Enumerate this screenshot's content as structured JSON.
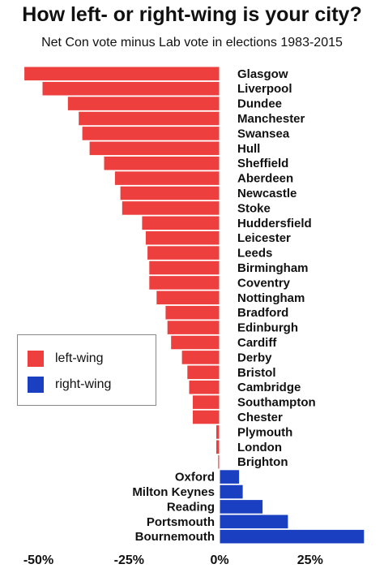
{
  "chart_data": {
    "type": "bar",
    "orientation": "horizontal",
    "title": "How left- or right-wing is your city?",
    "subtitle": "Net Con vote minus Lab vote in elections 1983-2015",
    "xlabel": "",
    "ylabel": "",
    "xlim": [
      -55,
      55
    ],
    "xticks": [
      -50,
      -25,
      0,
      25,
      50
    ],
    "xtick_labels": [
      "-50%",
      "-25%",
      "0%",
      "25%",
      "50%"
    ],
    "grid": false,
    "legend_position": "left-middle",
    "legend": [
      {
        "label": "left-wing",
        "color": "#ee3f3f"
      },
      {
        "label": "right-wing",
        "color": "#1a3fc0"
      }
    ],
    "colors": {
      "left": "#ee3f3f",
      "right": "#1a3fc0",
      "bar_border": "#ffffff"
    },
    "categories": [
      "Glasgow",
      "Liverpool",
      "Dundee",
      "Manchester",
      "Swansea",
      "Hull",
      "Sheffield",
      "Aberdeen",
      "Newcastle",
      "Stoke",
      "Huddersfield",
      "Leicester",
      "Leeds",
      "Birmingham",
      "Coventry",
      "Nottingham",
      "Bradford",
      "Edinburgh",
      "Cardiff",
      "Derby",
      "Bristol",
      "Cambridge",
      "Southampton",
      "Chester",
      "Plymouth",
      "London",
      "Brighton",
      "Oxford",
      "Milton Keynes",
      "Reading",
      "Portsmouth",
      "Bournemouth"
    ],
    "values": [
      -54,
      -49,
      -42,
      -39,
      -38,
      -36,
      -32,
      -29,
      -27.5,
      -27,
      -21.5,
      -20.5,
      -20,
      -19.5,
      -19.5,
      -17.5,
      -15,
      -14.5,
      -13.5,
      -10.5,
      -9,
      -8.5,
      -7.5,
      -7.5,
      -1,
      -1,
      -0.5,
      5.5,
      6.5,
      12,
      19,
      40
    ]
  }
}
